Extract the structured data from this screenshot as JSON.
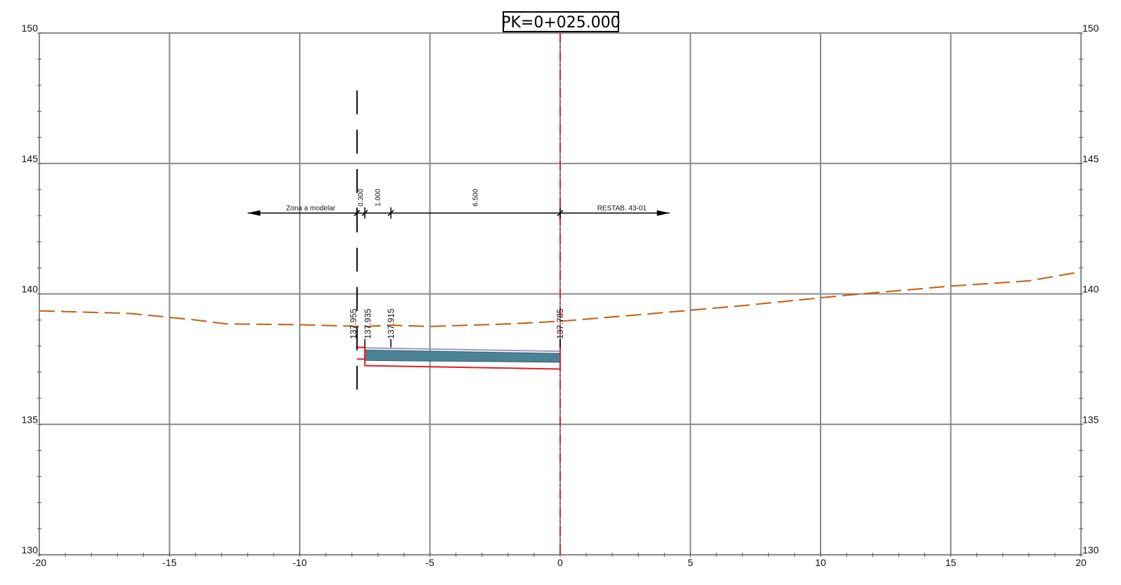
{
  "title": "PK=0+025.000",
  "axes": {
    "x_range": [
      -20,
      20
    ],
    "y_range": [
      130,
      150
    ],
    "x_ticks": [
      "-20",
      "-15",
      "-10",
      "-5",
      "0",
      "5",
      "10",
      "15",
      "20"
    ],
    "y_ticks": [
      "150",
      "145",
      "140",
      "135",
      "130"
    ],
    "grid": true
  },
  "terrain_profile": {
    "color": "#c0600a",
    "style": "dashed",
    "points": [
      [
        -20,
        139.35
      ],
      [
        -16.5,
        139.25
      ],
      [
        -15,
        139.1
      ],
      [
        -14,
        139.0
      ],
      [
        -12.8,
        138.85
      ],
      [
        -10,
        138.82
      ],
      [
        -7.5,
        138.75
      ],
      [
        -6.5,
        138.8
      ],
      [
        -5,
        138.75
      ],
      [
        -2,
        138.85
      ],
      [
        0,
        138.95
      ],
      [
        3,
        139.2
      ],
      [
        7,
        139.55
      ],
      [
        11,
        139.95
      ],
      [
        15,
        140.3
      ],
      [
        18,
        140.5
      ],
      [
        20,
        140.85
      ]
    ]
  },
  "axis_line": {
    "color": "#e02020",
    "style": "dashdot",
    "x": 0
  },
  "limit_line": {
    "color": "#000000",
    "style": "dashed",
    "x": -7.8,
    "y_from": 136,
    "y_to": 147.8
  },
  "road_section": {
    "fill_color": "#4a8296",
    "outline_color": "#e02020",
    "top": [
      [
        -7.5,
        137.85
      ],
      [
        0,
        137.72
      ]
    ],
    "bottom": [
      [
        -7.5,
        137.45
      ],
      [
        0,
        137.38
      ]
    ],
    "subgrade": [
      [
        -7.5,
        137.25
      ],
      [
        0,
        137.12
      ]
    ]
  },
  "elevation_labels": [
    {
      "x": -7.8,
      "text": "137.955"
    },
    {
      "x": -7.5,
      "text": "137.935"
    },
    {
      "x": -6.5,
      "text": "137.915"
    },
    {
      "x": 0,
      "text": "137.785"
    }
  ],
  "dimensions": {
    "y": 143.1,
    "segments": [
      {
        "text": "0.300",
        "from": -7.8,
        "to": -7.5
      },
      {
        "text": "1.000",
        "from": -7.5,
        "to": -6.5
      },
      {
        "text": "6.500",
        "from": -6.5,
        "to": 0
      }
    ],
    "left_arrow": {
      "text": "Zona a modelar",
      "from": -7.8,
      "to": -12
    },
    "right_arrow": {
      "text": "RESTAB. 43-01",
      "from": 0,
      "to": 4.2
    }
  }
}
